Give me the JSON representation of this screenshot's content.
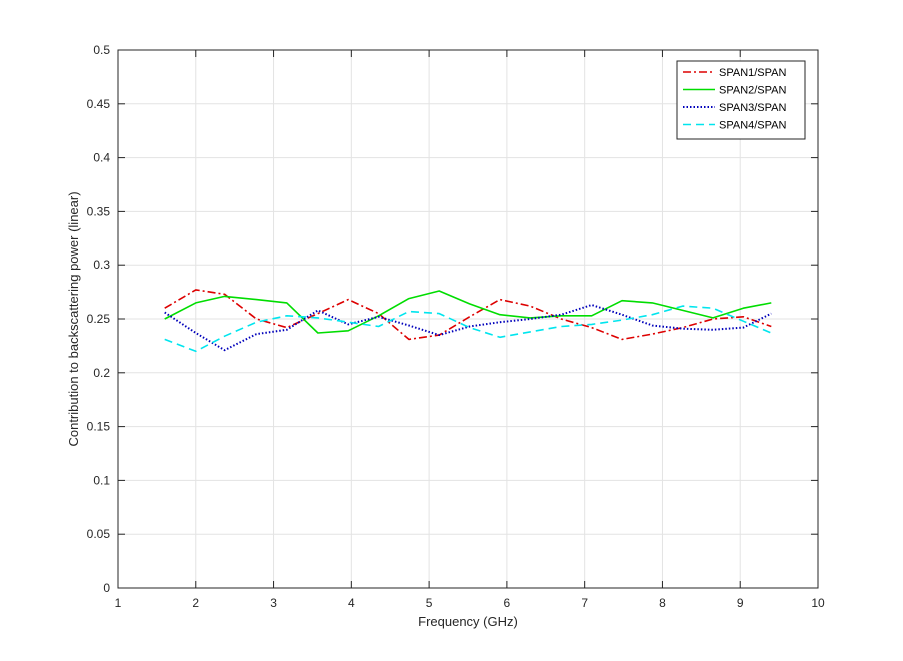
{
  "chart_data": {
    "type": "line",
    "xlabel": "Frequency (GHz)",
    "ylabel": "Contribution to backscattering power (linear)",
    "xlim": [
      1,
      10
    ],
    "ylim": [
      0,
      0.5
    ],
    "xticks": [
      1,
      2,
      3,
      4,
      5,
      6,
      7,
      8,
      9,
      10
    ],
    "yticks": [
      0,
      0.05,
      0.1,
      0.15,
      0.2,
      0.25,
      0.3,
      0.35,
      0.4,
      0.45,
      0.5
    ],
    "grid": true,
    "legend_position": "top-right",
    "x": [
      1.6,
      2.0,
      2.37,
      2.78,
      3.17,
      3.57,
      3.96,
      4.35,
      4.74,
      5.13,
      5.52,
      5.91,
      6.3,
      6.7,
      7.09,
      7.48,
      7.87,
      8.26,
      8.65,
      9.04,
      9.4
    ],
    "series": [
      {
        "name": "SPAN1/SPAN",
        "color": "#dd0000",
        "dash": "dashdot",
        "values": [
          0.26,
          0.277,
          0.273,
          0.25,
          0.242,
          0.255,
          0.268,
          0.255,
          0.231,
          0.235,
          0.252,
          0.268,
          0.262,
          0.25,
          0.242,
          0.231,
          0.236,
          0.242,
          0.25,
          0.252,
          0.243
        ]
      },
      {
        "name": "SPAN2/SPAN",
        "color": "#00dd00",
        "dash": "solid",
        "values": [
          0.25,
          0.265,
          0.271,
          0.268,
          0.265,
          0.237,
          0.239,
          0.253,
          0.269,
          0.276,
          0.264,
          0.254,
          0.251,
          0.253,
          0.253,
          0.267,
          0.265,
          0.258,
          0.251,
          0.26,
          0.265
        ]
      },
      {
        "name": "SPAN3/SPAN",
        "color": "#0000bb",
        "dash": "dotted",
        "values": [
          0.256,
          0.237,
          0.221,
          0.236,
          0.24,
          0.258,
          0.245,
          0.252,
          0.244,
          0.235,
          0.243,
          0.247,
          0.25,
          0.254,
          0.263,
          0.254,
          0.244,
          0.241,
          0.24,
          0.242,
          0.255
        ]
      },
      {
        "name": "SPAN4/SPAN",
        "color": "#00e5ee",
        "dash": "dashed",
        "values": [
          0.231,
          0.22,
          0.234,
          0.247,
          0.253,
          0.251,
          0.247,
          0.243,
          0.257,
          0.255,
          0.242,
          0.233,
          0.238,
          0.243,
          0.245,
          0.249,
          0.254,
          0.262,
          0.26,
          0.248,
          0.237
        ]
      }
    ]
  }
}
